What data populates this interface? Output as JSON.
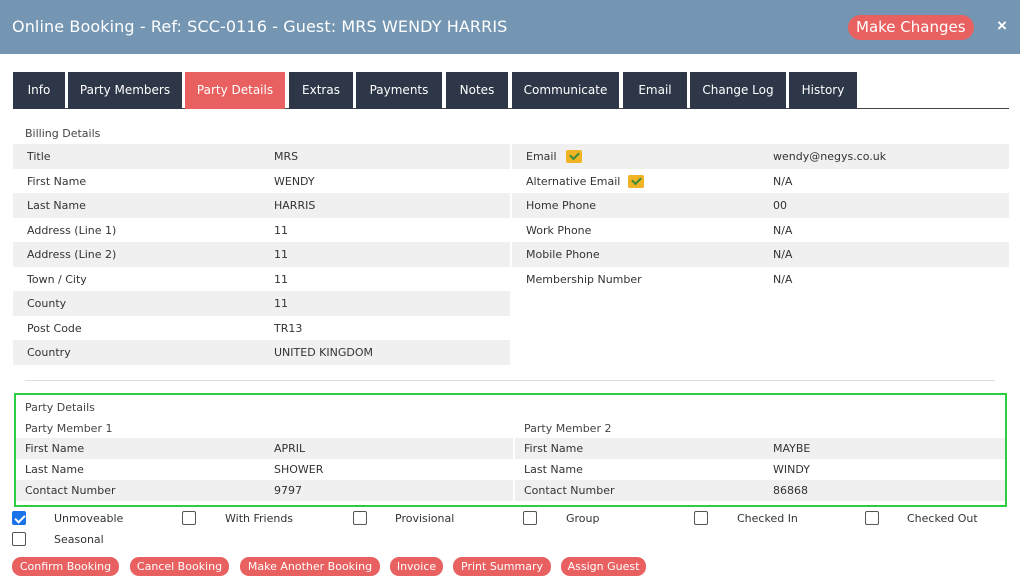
{
  "header": {
    "title": "Online Booking - Ref: SCC-0116 - Guest: MRS WENDY HARRIS",
    "make_changes_label": "Make Changes",
    "close_label": "×"
  },
  "tabs": [
    {
      "label": "Info",
      "active": false
    },
    {
      "label": "Party Members",
      "active": false
    },
    {
      "label": "Party Details",
      "active": true
    },
    {
      "label": "Extras",
      "active": false
    },
    {
      "label": "Payments",
      "active": false
    },
    {
      "label": "Notes",
      "active": false
    },
    {
      "label": "Communicate",
      "active": false
    },
    {
      "label": "Email",
      "active": false
    },
    {
      "label": "Change Log",
      "active": false
    },
    {
      "label": "History",
      "active": false
    }
  ],
  "billing": {
    "heading": "Billing Details",
    "left": [
      {
        "key": "Title",
        "value": "MRS"
      },
      {
        "key": "First Name",
        "value": "WENDY"
      },
      {
        "key": "Last Name",
        "value": "HARRIS"
      },
      {
        "key": "Address (Line 1)",
        "value": "11"
      },
      {
        "key": "Address (Line 2)",
        "value": "11"
      },
      {
        "key": "Town / City",
        "value": "11"
      },
      {
        "key": "County",
        "value": "11"
      },
      {
        "key": "Post Code",
        "value": "TR13"
      },
      {
        "key": "Country",
        "value": "UNITED KINGDOM"
      }
    ],
    "right": [
      {
        "key": "Email",
        "value": "wendy@negys.co.uk"
      },
      {
        "key": "Alternative Email",
        "value": "N/A"
      },
      {
        "key": "Home Phone",
        "value": "00"
      },
      {
        "key": "Work Phone",
        "value": "N/A"
      },
      {
        "key": "Mobile Phone",
        "value": "N/A"
      },
      {
        "key": "Membership Number",
        "value": "N/A"
      }
    ]
  },
  "party": {
    "heading": "Party Details",
    "members": [
      {
        "title": "Party Member 1",
        "fields": [
          {
            "key": "First Name",
            "value": "APRIL"
          },
          {
            "key": "Last Name",
            "value": "SHOWER"
          },
          {
            "key": "Contact Number",
            "value": "9797"
          }
        ]
      },
      {
        "title": "Party Member 2",
        "fields": [
          {
            "key": "First Name",
            "value": "MAYBE"
          },
          {
            "key": "Last Name",
            "value": "WINDY"
          },
          {
            "key": "Contact Number",
            "value": "86868"
          }
        ]
      }
    ]
  },
  "flags": [
    {
      "label": "Unmoveable",
      "checked": true
    },
    {
      "label": "With Friends",
      "checked": false
    },
    {
      "label": "Provisional",
      "checked": false
    },
    {
      "label": "Group",
      "checked": false
    },
    {
      "label": "Checked In",
      "checked": false
    },
    {
      "label": "Checked Out",
      "checked": false
    },
    {
      "label": "Seasonal",
      "checked": false
    }
  ],
  "actions": [
    {
      "label": "Confirm Booking"
    },
    {
      "label": "Cancel Booking"
    },
    {
      "label": "Make Another Booking"
    },
    {
      "label": "Invoice"
    },
    {
      "label": "Print Summary"
    },
    {
      "label": "Assign Guest"
    }
  ],
  "colors": {
    "header": "#7496b3",
    "tab": "#2d3748",
    "accent": "#e96060",
    "highlight_border": "#2ecc40"
  }
}
